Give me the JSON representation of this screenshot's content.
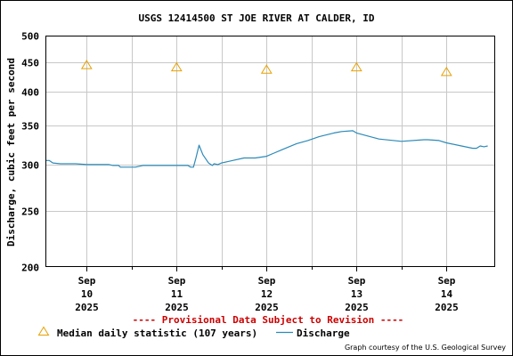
{
  "chart_data": {
    "type": "line",
    "title": "USGS 12414500 ST JOE RIVER AT CALDER, ID",
    "ylabel": "Discharge, cubic feet per second",
    "xlabel": "",
    "y_scale": "log",
    "ylim": [
      200,
      500
    ],
    "y_ticks": [
      200,
      250,
      300,
      350,
      400,
      450,
      500
    ],
    "y_tick_labels": [
      "200",
      "250",
      "300",
      "350",
      "400",
      "450",
      "500"
    ],
    "x_range": [
      "2025-09-09 13:00",
      "2025-09-14 13:00"
    ],
    "x_ticks": [
      {
        "t": "2025-09-10 00:00",
        "label": [
          "Sep",
          "10",
          "2025"
        ]
      },
      {
        "t": "2025-09-11 00:00",
        "label": [
          "Sep",
          "11",
          "2025"
        ]
      },
      {
        "t": "2025-09-12 00:00",
        "label": [
          "Sep",
          "12",
          "2025"
        ]
      },
      {
        "t": "2025-09-13 00:00",
        "label": [
          "Sep",
          "13",
          "2025"
        ]
      },
      {
        "t": "2025-09-14 00:00",
        "label": [
          "Sep",
          "14",
          "2025"
        ]
      }
    ],
    "grid": true,
    "series": [
      {
        "name": "Median daily statistic (107 years)",
        "kind": "marker",
        "marker": "triangle",
        "color": "#e8a000",
        "x": [
          "2025-09-10 00:00",
          "2025-09-11 00:00",
          "2025-09-12 00:00",
          "2025-09-13 00:00",
          "2025-09-14 00:00"
        ],
        "values": [
          445,
          441,
          437,
          441,
          433
        ]
      },
      {
        "name": "Discharge",
        "kind": "line",
        "color": "#2c8ab8",
        "x": [
          "2025-09-09 13:00",
          "2025-09-09 14:00",
          "2025-09-09 15:00",
          "2025-09-09 17:00",
          "2025-09-09 21:00",
          "2025-09-10 00:00",
          "2025-09-10 06:00",
          "2025-09-10 07:00",
          "2025-09-10 08:30",
          "2025-09-10 09:00",
          "2025-09-10 13:00",
          "2025-09-10 15:00",
          "2025-09-10 19:00",
          "2025-09-11 00:00",
          "2025-09-11 03:00",
          "2025-09-11 03:45",
          "2025-09-11 04:30",
          "2025-09-11 05:10",
          "2025-09-11 06:00",
          "2025-09-11 07:00",
          "2025-09-11 08:30",
          "2025-09-11 09:30",
          "2025-09-11 10:00",
          "2025-09-11 11:00",
          "2025-09-11 12:00",
          "2025-09-11 18:00",
          "2025-09-11 19:00",
          "2025-09-11 21:00",
          "2025-09-12 00:00",
          "2025-09-12 02:00",
          "2025-09-12 04:00",
          "2025-09-12 06:00",
          "2025-09-12 08:00",
          "2025-09-12 11:00",
          "2025-09-12 14:00",
          "2025-09-12 18:00",
          "2025-09-12 20:00",
          "2025-09-12 23:00",
          "2025-09-13 00:00",
          "2025-09-13 03:00",
          "2025-09-13 06:00",
          "2025-09-13 12:00",
          "2025-09-13 18:00",
          "2025-09-13 19:00",
          "2025-09-13 22:00",
          "2025-09-14 00:00",
          "2025-09-14 04:00",
          "2025-09-14 07:00",
          "2025-09-14 08:00",
          "2025-09-14 09:00",
          "2025-09-14 10:00",
          "2025-09-14 11:00"
        ],
        "values": [
          305,
          305,
          302,
          301,
          301,
          300,
          300,
          299,
          299,
          297,
          297,
          299,
          299,
          299,
          299,
          297,
          297,
          308,
          324,
          312,
          302,
          299,
          301,
          300,
          302,
          308,
          308,
          308,
          310,
          314,
          318,
          322,
          326,
          330,
          335,
          340,
          342,
          343,
          340,
          336,
          332,
          329,
          331,
          331,
          330,
          327,
          323,
          320,
          320,
          323,
          322,
          323
        ]
      }
    ],
    "notice": "---- Provisional Data Subject to Revision ----",
    "notice_color": "#cc0000",
    "credit": "Graph courtesy of the U.S. Geological Survey",
    "legend_placement": "bottom-left"
  }
}
